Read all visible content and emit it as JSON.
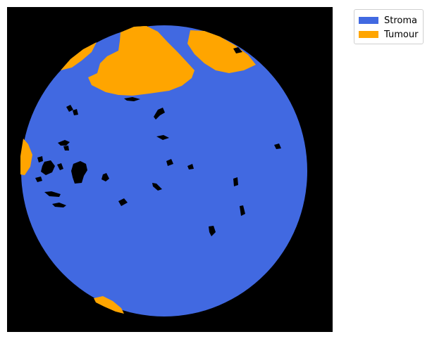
{
  "colors": {
    "background": "#000000",
    "stroma": "#4169e1",
    "tumour": "#ffa500"
  },
  "legend": {
    "placement": "upper-right-outside",
    "items": [
      {
        "label": "Stroma",
        "color": "#4169e1"
      },
      {
        "label": "Tumour",
        "color": "#ffa500"
      }
    ]
  }
}
